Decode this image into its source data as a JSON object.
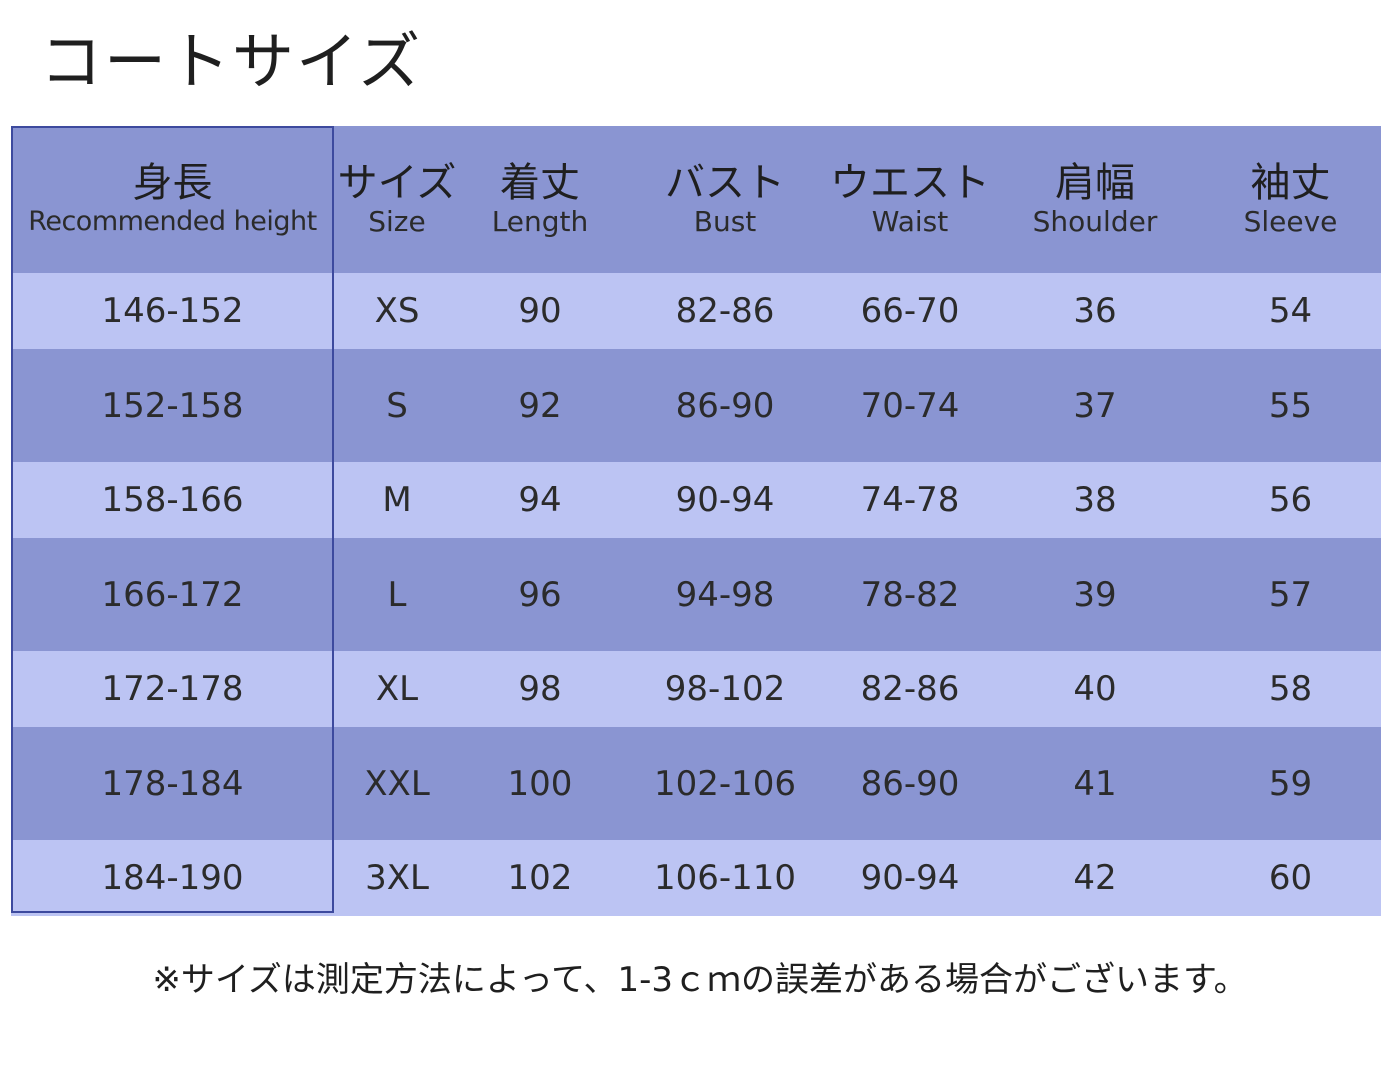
{
  "title": "コートサイズ",
  "table": {
    "headers": [
      {
        "jp": "身長",
        "en": "Recommended height"
      },
      {
        "jp": "サイズ",
        "en": "Size"
      },
      {
        "jp": "着丈",
        "en": "Length"
      },
      {
        "jp": "バスト",
        "en": "Bust"
      },
      {
        "jp": "ウエスト",
        "en": "Waist"
      },
      {
        "jp": "肩幅",
        "en": "Shoulder"
      },
      {
        "jp": "袖丈",
        "en": "Sleeve"
      }
    ],
    "rows": [
      [
        "146-152",
        "XS",
        "90",
        "82-86",
        "66-70",
        "36",
        "54"
      ],
      [
        "152-158",
        "S",
        "92",
        "86-90",
        "70-74",
        "37",
        "55"
      ],
      [
        "158-166",
        "M",
        "94",
        "90-94",
        "74-78",
        "38",
        "56"
      ],
      [
        "166-172",
        "L",
        "96",
        "94-98",
        "78-82",
        "39",
        "57"
      ],
      [
        "172-178",
        "XL",
        "98",
        "98-102",
        "82-86",
        "40",
        "58"
      ],
      [
        "178-184",
        "XXL",
        "100",
        "102-106",
        "86-90",
        "41",
        "59"
      ],
      [
        "184-190",
        "3XL",
        "102",
        "106-110",
        "90-94",
        "42",
        "60"
      ]
    ]
  },
  "footnote": "※サイズは測定方法によって、1-3ｃｍの誤差がある場合がございます。",
  "colors": {
    "header_bg": "#8a95d2",
    "row_light": "#bcc4f3",
    "row_dark": "#8a95d2",
    "border": "#3d4a9e"
  }
}
